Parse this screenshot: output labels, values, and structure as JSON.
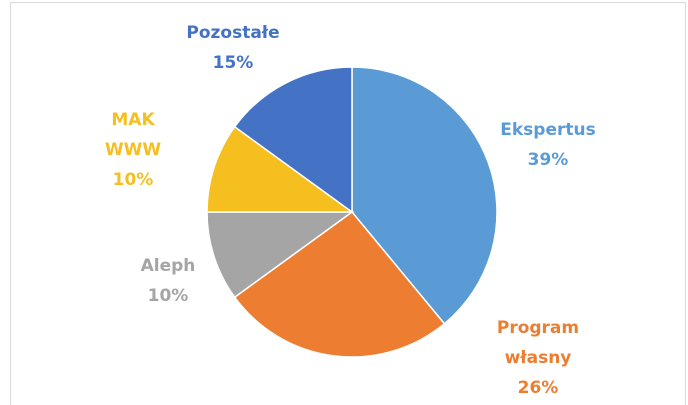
{
  "chart_data": {
    "type": "pie",
    "categories": [
      "Ekspertus",
      "Program własny",
      "Aleph",
      "MAKWWW",
      "Pozostałe"
    ],
    "values": [
      39,
      26,
      10,
      10,
      15
    ],
    "value_labels": [
      "39%",
      "26%",
      "10%",
      "10%",
      "15%"
    ],
    "colors": [
      "#5b9bd5",
      "#ed7d31",
      "#a5a5a5",
      "#f5bf1f",
      "#4472c4"
    ]
  }
}
